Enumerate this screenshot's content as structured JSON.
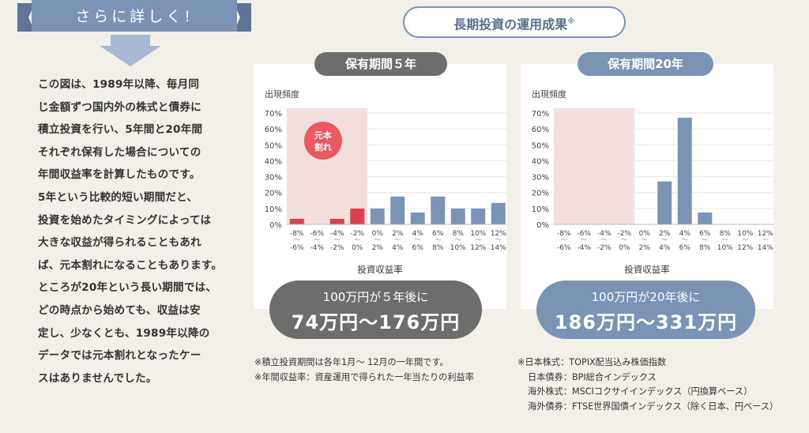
{
  "ribbon": {
    "label": "さらに詳しく!"
  },
  "description": [
    "この図は、1989年以降、毎月同",
    "じ金額ずつ国内外の株式と債券に",
    "積立投資を行い、5年間と20年間",
    "それぞれ保有した場合についての",
    "年間収益率を計算したものです。",
    "5年という比較的短い期間だと、",
    "投資を始めたタイミングによっては",
    "大きな収益が得られることもあれ",
    "ば、元本割れになることもあります。",
    "ところが20年という長い期間では、",
    "どの時点から始めても、収益は安",
    "定し、少なくとも、1989年以降の",
    "データでは元本割れとなったケー",
    "スはありませんでした。"
  ],
  "title": {
    "text": "長期投資の運用成果",
    "mark": "※"
  },
  "panels": [
    {
      "tab": "保有期間５年",
      "result_sub": "100万円が５年後に",
      "result_main": "74万円〜176万円"
    },
    {
      "tab": "保有期間20年",
      "result_sub": "100万円が20年後に",
      "result_main": "186万円〜331万円"
    }
  ],
  "chart_data": [
    {
      "type": "bar",
      "title": "保有期間５年",
      "ylabel": "出現頻度",
      "xlabel": "投資収益率",
      "categories": [
        "-8%〜-6%",
        "-6%〜-4%",
        "-4%〜-2%",
        "-2%〜0%",
        "0%〜2%",
        "2%〜4%",
        "4%〜6%",
        "6%〜8%",
        "8%〜10%",
        "10%〜12%",
        "12%〜14%"
      ],
      "tick_top": [
        "-8%",
        "-6%",
        "-4%",
        "-2%",
        "0%",
        "2%",
        "4%",
        "6%",
        "8%",
        "10%",
        "12%"
      ],
      "tick_bottom": [
        "-6%",
        "-4%",
        "-2%",
        "0%",
        "2%",
        "4%",
        "6%",
        "8%",
        "10%",
        "12%",
        "14%"
      ],
      "values": [
        3.5,
        0,
        3.5,
        10,
        10,
        17.5,
        7.5,
        17.5,
        10,
        10,
        13.5
      ],
      "ylim": [
        0,
        70
      ],
      "yticks": [
        "0%",
        "10%",
        "20%",
        "30%",
        "40%",
        "50%",
        "60%",
        "70%"
      ],
      "loss_region_label": "元本割れ",
      "colors": {
        "loss": "#d9424b",
        "gain": "#7b93b5",
        "loss_region": "#f5dede",
        "badge": "#e9595f"
      }
    },
    {
      "type": "bar",
      "title": "保有期間20年",
      "ylabel": "出現頻度",
      "xlabel": "投資収益率",
      "categories": [
        "-8%〜-6%",
        "-6%〜-4%",
        "-4%〜-2%",
        "-2%〜0%",
        "0%〜2%",
        "2%〜4%",
        "4%〜6%",
        "6%〜8%",
        "8%〜10%",
        "10%〜12%",
        "12%〜14%"
      ],
      "tick_top": [
        "-8%",
        "-6%",
        "-4%",
        "-2%",
        "0%",
        "2%",
        "4%",
        "6%",
        "8%",
        "10%",
        "12%"
      ],
      "tick_bottom": [
        "-6%",
        "-4%",
        "-2%",
        "0%",
        "2%",
        "4%",
        "6%",
        "8%",
        "10%",
        "12%",
        "14%"
      ],
      "values": [
        0,
        0,
        0,
        0,
        0,
        27,
        67,
        7.5,
        0,
        0,
        0
      ],
      "ylim": [
        0,
        70
      ],
      "yticks": [
        "0%",
        "10%",
        "20%",
        "30%",
        "40%",
        "50%",
        "60%",
        "70%"
      ],
      "colors": {
        "loss": "#d9424b",
        "gain": "#7b93b5",
        "loss_region": "#f5dede"
      }
    }
  ],
  "notes_left": [
    "※積立投資期間は各年1月〜 12月の一年間です。",
    "※年間収益率：資産運用で得られた一年当たりの利益率"
  ],
  "notes_right": [
    "※日本株式：TOPIX配当込み株価指数",
    "日本債券：BPI総合インデックス",
    "海外株式：MSCIコクサイインデックス（円換算ベース）",
    "海外債券：FTSE世界国債インデックス（除く日本、円ベース）"
  ],
  "colors": {
    "background": "#f2f0e9",
    "accent_blue": "#7b93b5",
    "accent_gray": "#6d6d6d"
  }
}
